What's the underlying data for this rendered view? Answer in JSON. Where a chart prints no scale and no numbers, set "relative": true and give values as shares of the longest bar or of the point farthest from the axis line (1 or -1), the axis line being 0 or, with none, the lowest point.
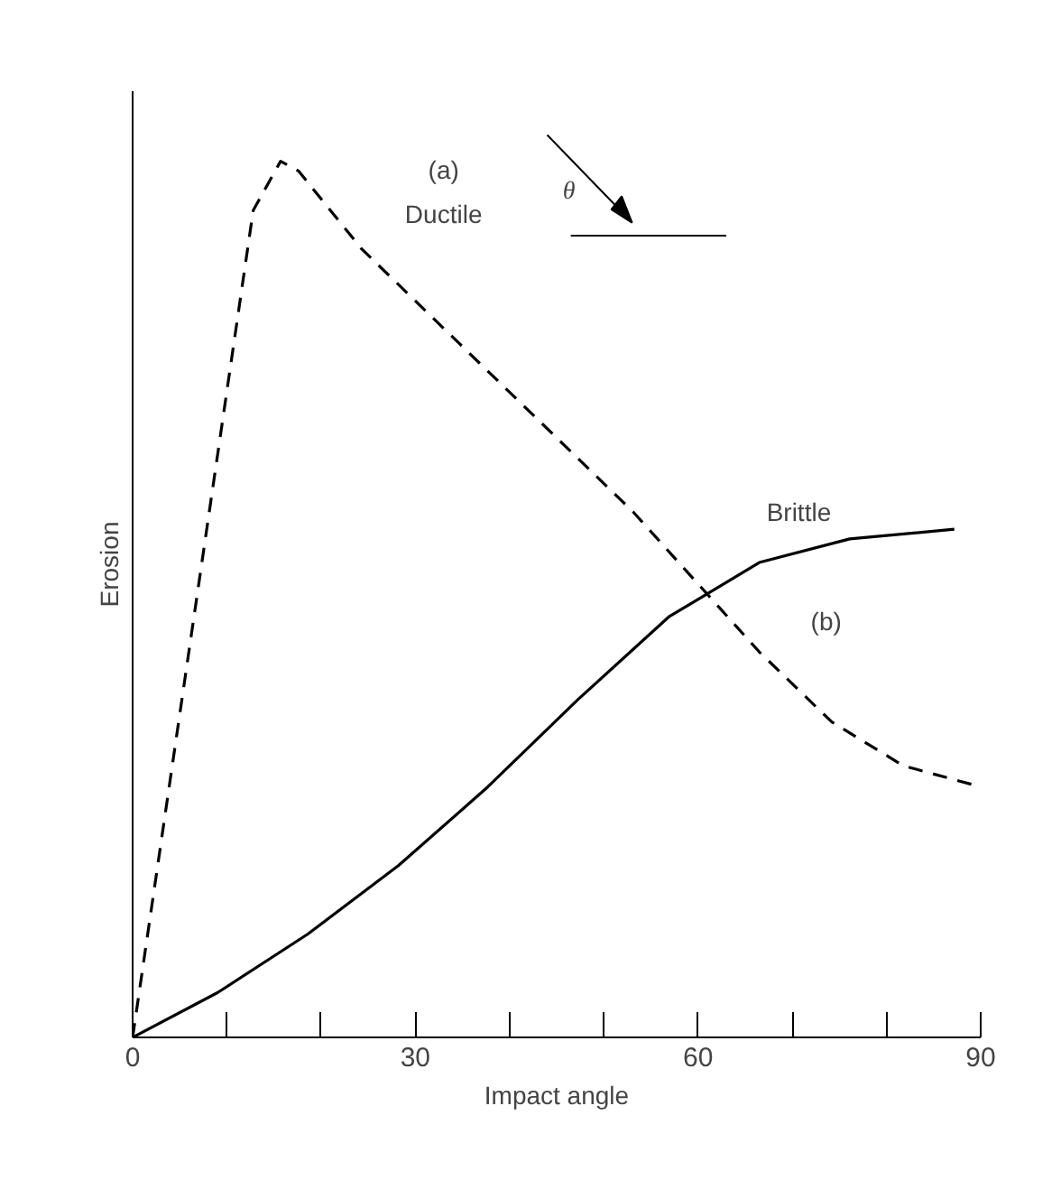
{
  "chart_data": {
    "type": "line",
    "relative": true,
    "xlabel": "Impact angle",
    "ylabel": "Erosion",
    "xlim": [
      0,
      90
    ],
    "xticks": [
      0,
      {
        "value": 10,
        "label": null
      },
      {
        "value": 20,
        "label": null
      },
      30,
      {
        "value": 40,
        "label": null
      },
      {
        "value": 50,
        "label": null
      },
      60,
      {
        "value": 70,
        "label": null
      },
      {
        "value": 80,
        "label": null
      },
      90
    ],
    "grid": false,
    "series": [
      {
        "color": "#000000",
        "line_style": "dashed",
        "x": [
          0,
          12.8,
          15.7,
          17.6,
          24.3,
          33.9,
          43.5,
          53.1,
          59.8,
          66.5,
          74.2,
          81.8,
          90
        ],
        "values": [
          0,
          0.944,
          1.0,
          0.989,
          0.9,
          0.8,
          0.7,
          0.6,
          0.52,
          0.44,
          0.36,
          0.31,
          0.286
        ]
      },
      {
        "color": "#000000",
        "line_style": "solid",
        "x": [
          0,
          9,
          18.6,
          28.2,
          37.7,
          47.3,
          56.9,
          66.5,
          76.1,
          87.2
        ],
        "values": [
          0,
          0.051,
          0.118,
          0.196,
          0.286,
          0.386,
          0.48,
          0.542,
          0.569,
          0.58
        ]
      }
    ],
    "annotations": [
      "(a)",
      "Ductile",
      "Brittle",
      "(b)",
      "θ"
    ]
  }
}
